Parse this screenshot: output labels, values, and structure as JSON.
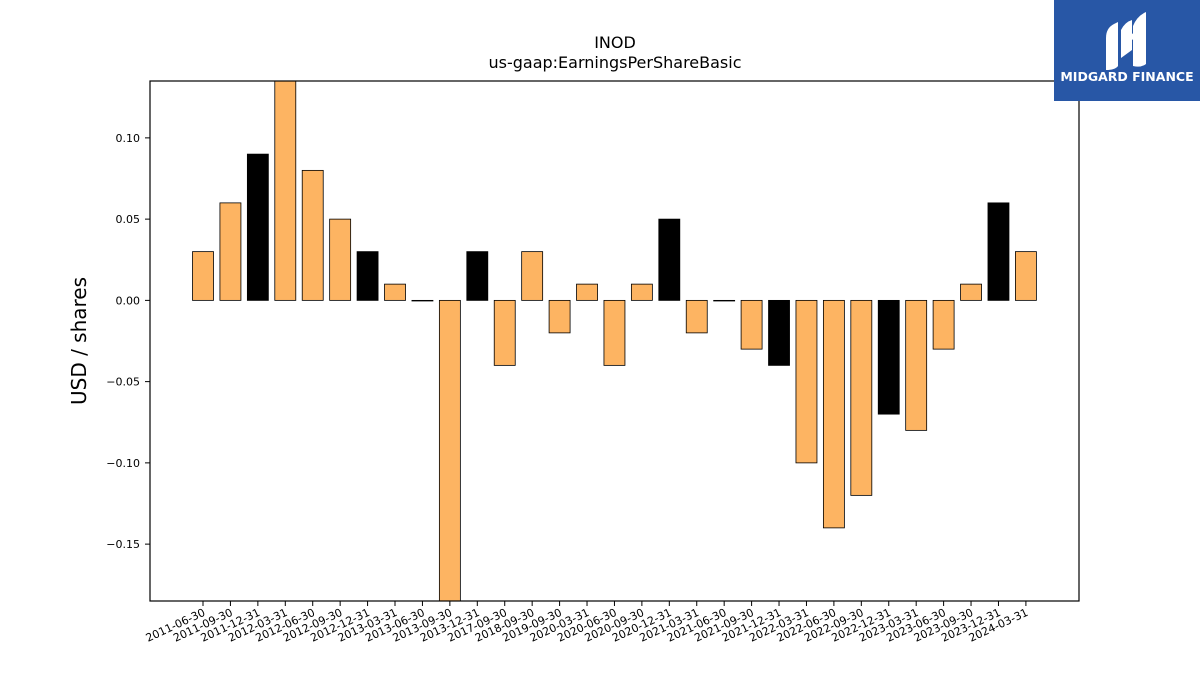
{
  "brand": {
    "name": "MIDGARD FINANCE",
    "logo_bg": "#2857a6",
    "logo_icon": "midgard-m-icon"
  },
  "colors": {
    "bar_default": "#fdb462",
    "bar_highlight": "#000000",
    "bar_edge": "#000000"
  },
  "chart_data": {
    "type": "bar",
    "title": "INOD",
    "subtitle": "us-gaap:EarningsPerShareBasic",
    "xlabel": "",
    "ylabel": "USD / shares",
    "ylim": [
      -0.185,
      0.135
    ],
    "yticks": [
      0.1,
      0.05,
      0.0,
      -0.05,
      -0.1,
      -0.15
    ],
    "ytick_labels": [
      "0.10",
      "0.05",
      "0.00",
      "−0.05",
      "−0.10",
      "−0.15"
    ],
    "grid": false,
    "categories": [
      "2011-06-30",
      "2011-09-30",
      "2011-12-31",
      "2012-03-31",
      "2012-06-30",
      "2012-09-30",
      "2012-12-31",
      "2013-03-31",
      "2013-06-30",
      "2013-09-30",
      "2013-12-31",
      "2017-09-30",
      "2018-09-30",
      "2019-09-30",
      "2020-03-31",
      "2020-06-30",
      "2020-09-30",
      "2020-12-31",
      "2021-03-31",
      "2021-06-30",
      "2021-09-30",
      "2021-12-31",
      "2022-03-31",
      "2022-06-30",
      "2022-09-30",
      "2022-12-31",
      "2023-03-31",
      "2023-06-30",
      "2023-09-30",
      "2023-12-31",
      "2024-03-31"
    ],
    "values": [
      0.03,
      0.06,
      0.09,
      0.14,
      0.08,
      0.05,
      0.03,
      0.01,
      0.0,
      -0.19,
      0.03,
      -0.04,
      0.03,
      -0.02,
      0.01,
      -0.04,
      0.01,
      0.05,
      -0.02,
      0.0,
      -0.03,
      -0.04,
      -0.1,
      -0.14,
      -0.12,
      -0.07,
      -0.08,
      -0.03,
      0.01,
      0.06,
      0.03
    ],
    "highlight": [
      false,
      false,
      true,
      false,
      false,
      false,
      true,
      false,
      false,
      false,
      true,
      false,
      false,
      false,
      false,
      false,
      false,
      true,
      false,
      false,
      false,
      true,
      false,
      false,
      false,
      true,
      false,
      false,
      false,
      true,
      false
    ]
  }
}
